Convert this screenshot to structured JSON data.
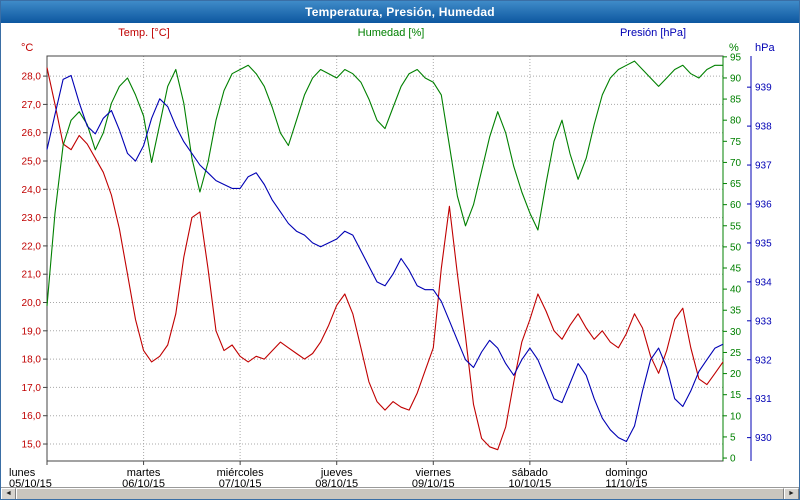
{
  "window": {
    "title": "Temperatura, Presión, Humedad"
  },
  "legend": [
    {
      "id": "temp",
      "label": "Temp. [°C]",
      "color": "#c00000"
    },
    {
      "id": "humidity",
      "label": "Humedad [%]",
      "color": "#008000"
    },
    {
      "id": "pressure",
      "label": "Presión [hPa]",
      "color": "#0000b4"
    }
  ],
  "x_axis": {
    "days": [
      {
        "name": "lunes",
        "date": "05/10/15"
      },
      {
        "name": "martes",
        "date": "06/10/15"
      },
      {
        "name": "miércoles",
        "date": "07/10/15"
      },
      {
        "name": "jueves",
        "date": "08/10/15"
      },
      {
        "name": "viernes",
        "date": "09/10/15"
      },
      {
        "name": "sábado",
        "date": "10/10/15"
      },
      {
        "name": "domingo",
        "date": "11/10/15"
      }
    ]
  },
  "chart_data": {
    "type": "line",
    "title": "Temperatura, Presión, Humedad",
    "grid": "dotted",
    "x_step_hours": 2,
    "total_hours": 168,
    "axes": {
      "temp": {
        "unit": "°C",
        "color": "#c00000",
        "min": 15,
        "max": 28,
        "step": 1,
        "decimals": 1,
        "decimal_separator": ",",
        "top_value": 28.71,
        "bottom_value": 14.4,
        "side": "left"
      },
      "humidity": {
        "unit": "%",
        "color": "#008000",
        "min": 0,
        "max": 95,
        "step": 5,
        "decimals": 0,
        "top_value": 95.2,
        "bottom_value": -0.7,
        "side": "right-inner"
      },
      "pressure": {
        "unit": "hPa",
        "color": "#0000b4",
        "min": 930,
        "max": 939,
        "step": 1,
        "decimals": 0,
        "top_value": 939.8,
        "bottom_value": 929.4,
        "side": "right-outer"
      }
    },
    "series": [
      {
        "id": "temp",
        "name": "Temp. [°C]",
        "axis": "temp",
        "color": "#c00000",
        "values": [
          28.3,
          27.0,
          25.6,
          25.4,
          25.9,
          25.6,
          25.1,
          24.6,
          23.8,
          22.6,
          21.0,
          19.4,
          18.3,
          17.9,
          18.1,
          18.5,
          19.6,
          21.6,
          23.0,
          23.2,
          21.2,
          19.0,
          18.3,
          18.5,
          18.1,
          17.9,
          18.1,
          18.0,
          18.3,
          18.6,
          18.4,
          18.2,
          18.0,
          18.2,
          18.6,
          19.2,
          19.9,
          20.3,
          19.6,
          18.4,
          17.2,
          16.5,
          16.2,
          16.5,
          16.3,
          16.2,
          16.8,
          17.6,
          18.4,
          21.2,
          23.4,
          21.0,
          18.8,
          16.4,
          15.2,
          14.9,
          14.8,
          15.6,
          17.2,
          18.6,
          19.4,
          20.3,
          19.7,
          19.0,
          18.7,
          19.2,
          19.6,
          19.1,
          18.7,
          19.0,
          18.6,
          18.4,
          18.9,
          19.6,
          19.1,
          18.1,
          17.5,
          18.3,
          19.4,
          19.8,
          18.4,
          17.3,
          17.1,
          17.5,
          17.9
        ]
      },
      {
        "id": "humidity",
        "name": "Humedad [%]",
        "axis": "humidity",
        "color": "#008000",
        "values": [
          36,
          58,
          74,
          80,
          82,
          79,
          73,
          77,
          84,
          88,
          90,
          86,
          81,
          70,
          79,
          88,
          92,
          84,
          71,
          63,
          70,
          80,
          87,
          91,
          92,
          93,
          91,
          88,
          83,
          77,
          74,
          80,
          86,
          90,
          92,
          91,
          90,
          92,
          91,
          89,
          85,
          80,
          78,
          83,
          88,
          91,
          92,
          90,
          89,
          86,
          74,
          62,
          55,
          60,
          68,
          76,
          82,
          77,
          69,
          63,
          58,
          54,
          65,
          75,
          80,
          72,
          66,
          71,
          79,
          86,
          90,
          92,
          93,
          94,
          92,
          90,
          88,
          90,
          92,
          93,
          91,
          90,
          92,
          93,
          93
        ]
      },
      {
        "id": "pressure",
        "name": "Presión [hPa]",
        "axis": "pressure",
        "color": "#0000b4",
        "values": [
          937.4,
          938.3,
          939.2,
          939.3,
          938.6,
          938.0,
          937.8,
          938.2,
          938.4,
          937.9,
          937.3,
          937.1,
          937.5,
          938.2,
          938.7,
          938.5,
          938.0,
          937.6,
          937.3,
          937.0,
          936.8,
          936.6,
          936.5,
          936.4,
          936.4,
          936.7,
          936.8,
          936.5,
          936.1,
          935.8,
          935.5,
          935.3,
          935.2,
          935.0,
          934.9,
          935.0,
          935.1,
          935.3,
          935.2,
          934.8,
          934.4,
          934.0,
          933.9,
          934.2,
          934.6,
          934.3,
          933.9,
          933.8,
          933.8,
          933.5,
          933.0,
          932.5,
          932.0,
          931.8,
          932.2,
          932.5,
          932.3,
          931.9,
          931.6,
          932.0,
          932.3,
          932.0,
          931.5,
          931.0,
          930.9,
          931.4,
          931.9,
          931.6,
          931.0,
          930.5,
          930.2,
          930.0,
          929.9,
          930.3,
          931.2,
          932.0,
          932.3,
          931.8,
          931.0,
          930.8,
          931.2,
          931.7,
          932.0,
          932.3,
          932.4
        ]
      }
    ]
  },
  "scrollbar": {
    "left_arrow": "◄",
    "right_arrow": "►"
  }
}
